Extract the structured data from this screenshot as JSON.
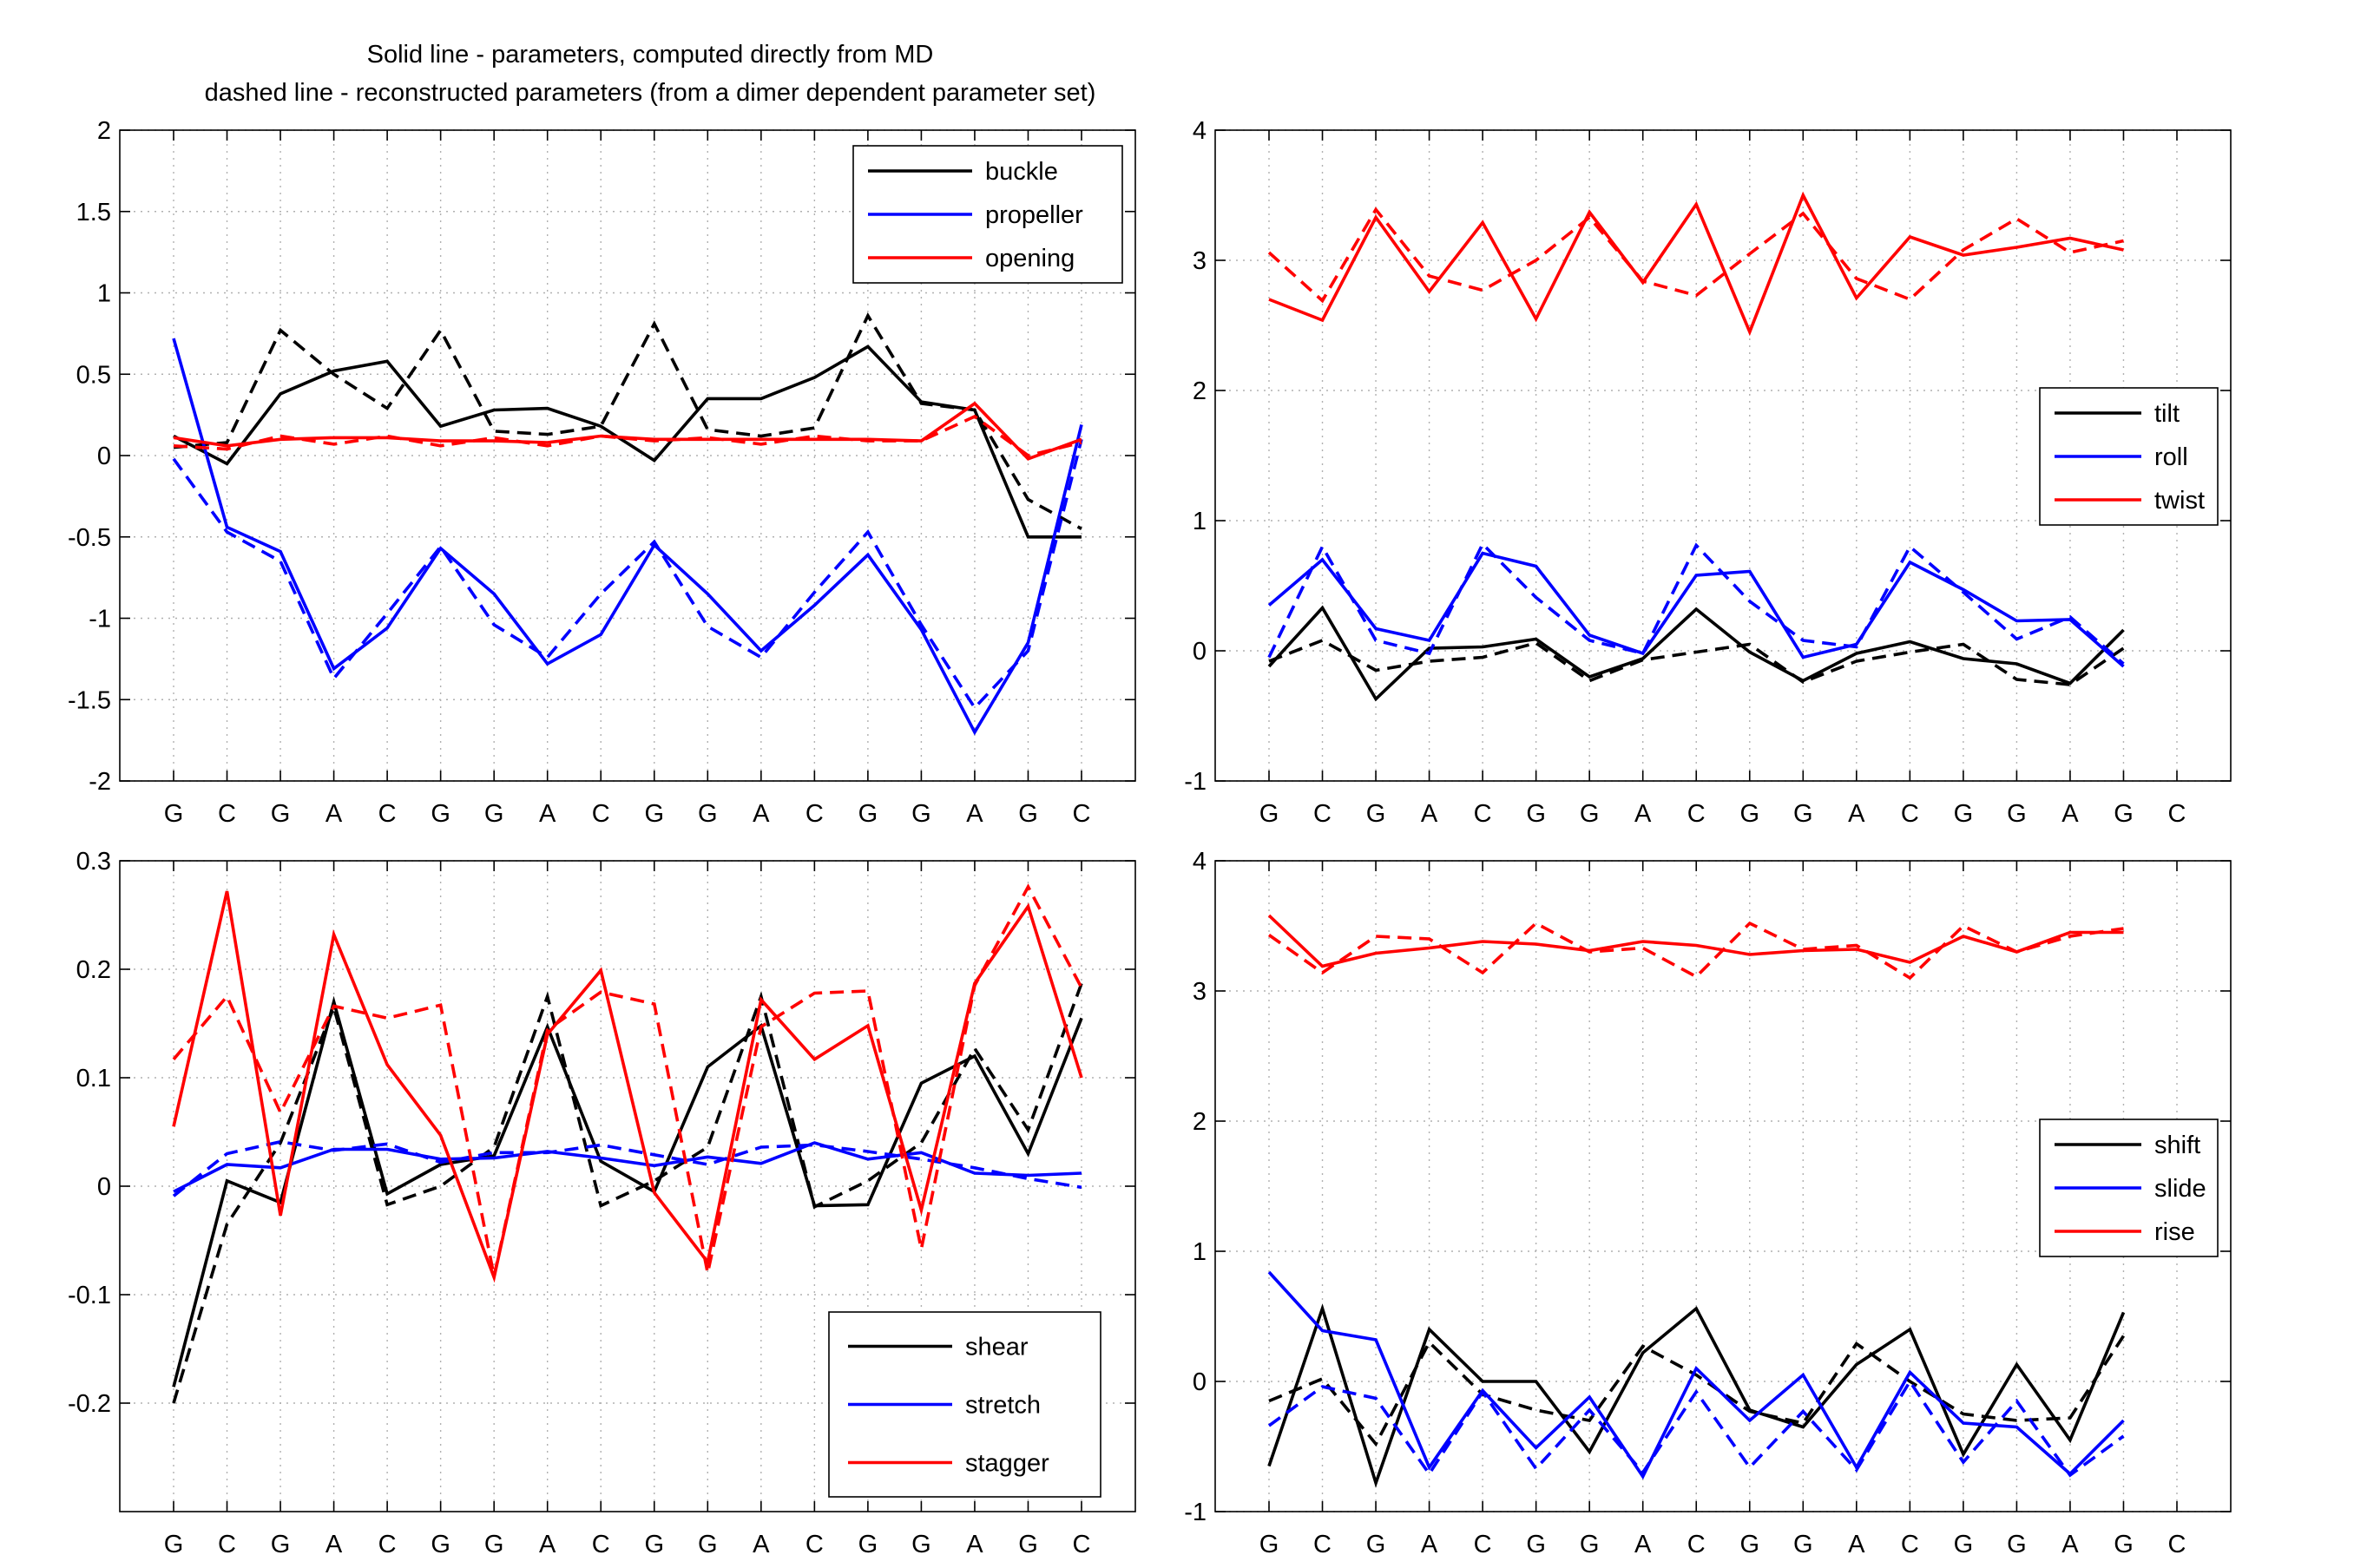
{
  "figure_title": {
    "line1": "Solid line - parameters, computed directly from MD",
    "line2": "dashed line - reconstructed parameters (from a dimer dependent parameter set)"
  },
  "line_styles": {
    "solid": "parameters, computed directly from MD",
    "dashed": "reconstructed parameters"
  },
  "colors": {
    "black": "#000000",
    "blue": "#0000ff",
    "red": "#ff0000",
    "grid": "#b0b0b0"
  },
  "chart_data": [
    {
      "id": "panel-top-left",
      "type": "line",
      "categories": [
        "G",
        "C",
        "G",
        "A",
        "C",
        "G",
        "G",
        "A",
        "C",
        "G",
        "G",
        "A",
        "C",
        "G",
        "G",
        "A",
        "G",
        "C"
      ],
      "ylim": [
        -2,
        2
      ],
      "yticks": [
        -2,
        -1.5,
        -1,
        -0.5,
        0,
        0.5,
        1,
        1.5,
        2
      ],
      "ytick_labels": [
        "-2",
        "-1.5",
        "-1",
        "-0.5",
        "0",
        "0.5",
        "1",
        "1.5",
        "2"
      ],
      "grid": true,
      "legend_position": "top-right",
      "series": [
        {
          "name": "buckle",
          "color": "#000000",
          "solid": [
            0.12,
            -0.05,
            0.38,
            0.52,
            0.58,
            0.18,
            0.28,
            0.29,
            0.18,
            -0.03,
            0.35,
            0.35,
            0.48,
            0.67,
            0.33,
            0.28,
            -0.5,
            -0.5
          ],
          "dashed": [
            0.05,
            0.08,
            0.77,
            0.5,
            0.29,
            0.77,
            0.15,
            0.13,
            0.18,
            0.81,
            0.16,
            0.12,
            0.17,
            0.86,
            0.32,
            0.28,
            -0.27,
            -0.45
          ]
        },
        {
          "name": "propeller",
          "color": "#0000ff",
          "solid": [
            0.72,
            -0.44,
            -0.59,
            -1.31,
            -1.06,
            -0.57,
            -0.85,
            -1.28,
            -1.1,
            -0.55,
            -0.85,
            -1.2,
            -0.92,
            -0.61,
            -1.07,
            -1.7,
            -1.15,
            0.19
          ],
          "dashed": [
            -0.02,
            -0.47,
            -0.65,
            -1.37,
            -0.97,
            -0.56,
            -1.04,
            -1.24,
            -0.85,
            -0.53,
            -1.05,
            -1.24,
            -0.84,
            -0.47,
            -1.04,
            -1.55,
            -1.2,
            0.1
          ]
        },
        {
          "name": "opening",
          "color": "#ff0000",
          "solid": [
            0.11,
            0.06,
            0.1,
            0.11,
            0.11,
            0.09,
            0.09,
            0.08,
            0.12,
            0.1,
            0.1,
            0.1,
            0.1,
            0.1,
            0.09,
            0.32,
            -0.02,
            0.1
          ],
          "dashed": [
            0.06,
            0.04,
            0.12,
            0.07,
            0.12,
            0.06,
            0.11,
            0.06,
            0.12,
            0.09,
            0.11,
            0.07,
            0.12,
            0.09,
            0.09,
            0.24,
            0.0,
            0.08
          ]
        }
      ]
    },
    {
      "id": "panel-top-right",
      "type": "line",
      "categories": [
        "G",
        "C",
        "G",
        "A",
        "C",
        "G",
        "G",
        "A",
        "C",
        "G",
        "G",
        "A",
        "C",
        "G",
        "G",
        "A",
        "G",
        "C"
      ],
      "ylim": [
        -1,
        4
      ],
      "yticks": [
        -1,
        0,
        1,
        2,
        3,
        4
      ],
      "ytick_labels": [
        "-1",
        "0",
        "1",
        "2",
        "3",
        "4"
      ],
      "grid": true,
      "legend_position": "right",
      "series": [
        {
          "name": "tilt",
          "color": "#000000",
          "solid": [
            -0.12,
            0.33,
            -0.37,
            0.02,
            0.03,
            0.09,
            -0.2,
            -0.06,
            0.32,
            -0.01,
            -0.23,
            -0.02,
            0.07,
            -0.06,
            -0.1,
            -0.25,
            0.16
          ],
          "dashed": [
            -0.08,
            0.08,
            -0.15,
            -0.08,
            -0.05,
            0.06,
            -0.23,
            -0.07,
            -0.01,
            0.05,
            -0.24,
            -0.08,
            -0.01,
            0.05,
            -0.22,
            -0.26,
            0.02
          ]
        },
        {
          "name": "roll",
          "color": "#0000ff",
          "solid": [
            0.35,
            0.7,
            0.17,
            0.08,
            0.75,
            0.65,
            0.12,
            -0.02,
            0.58,
            0.61,
            -0.05,
            0.05,
            0.68,
            0.47,
            0.23,
            0.24,
            -0.12
          ],
          "dashed": [
            -0.05,
            0.8,
            0.08,
            -0.02,
            0.82,
            0.41,
            0.08,
            -0.02,
            0.81,
            0.38,
            0.08,
            0.03,
            0.8,
            0.45,
            0.09,
            0.26,
            -0.1
          ]
        },
        {
          "name": "twist",
          "color": "#ff0000",
          "solid": [
            2.7,
            2.54,
            3.33,
            2.76,
            3.29,
            2.55,
            3.37,
            2.83,
            3.43,
            2.45,
            3.5,
            2.71,
            3.18,
            3.04,
            3.1,
            3.17,
            3.08
          ],
          "dashed": [
            3.06,
            2.69,
            3.39,
            2.88,
            2.77,
            3.0,
            3.33,
            2.84,
            2.73,
            3.05,
            3.36,
            2.86,
            2.7,
            3.08,
            3.32,
            3.06,
            3.15
          ]
        }
      ]
    },
    {
      "id": "panel-bottom-left",
      "type": "line",
      "categories": [
        "G",
        "C",
        "G",
        "A",
        "C",
        "G",
        "G",
        "A",
        "C",
        "G",
        "G",
        "A",
        "C",
        "G",
        "G",
        "A",
        "G",
        "C"
      ],
      "ylim": [
        -0.3,
        0.3
      ],
      "yticks": [
        -0.2,
        -0.1,
        0,
        0.1,
        0.2,
        0.3
      ],
      "ytick_labels": [
        "-0.2",
        "-0.1",
        "0",
        "0.1",
        "0.2",
        "0.3"
      ],
      "grid": true,
      "legend_position": "bottom-right",
      "series": [
        {
          "name": "shear",
          "color": "#000000",
          "solid": [
            -0.185,
            0.005,
            -0.015,
            0.17,
            -0.007,
            0.02,
            0.028,
            0.147,
            0.023,
            -0.005,
            0.11,
            0.148,
            -0.018,
            -0.017,
            0.095,
            0.12,
            0.03,
            0.155
          ],
          "dashed": [
            -0.2,
            -0.035,
            0.04,
            0.165,
            -0.017,
            0.0,
            0.036,
            0.175,
            -0.018,
            0.005,
            0.036,
            0.175,
            -0.019,
            0.005,
            0.04,
            0.127,
            0.052,
            0.187
          ]
        },
        {
          "name": "stretch",
          "color": "#0000ff",
          "solid": [
            -0.005,
            0.02,
            0.017,
            0.034,
            0.034,
            0.025,
            0.026,
            0.032,
            0.026,
            0.019,
            0.027,
            0.021,
            0.04,
            0.025,
            0.031,
            0.012,
            0.01,
            0.012
          ],
          "dashed": [
            -0.009,
            0.03,
            0.041,
            0.033,
            0.039,
            0.022,
            0.031,
            0.031,
            0.038,
            0.029,
            0.02,
            0.036,
            0.038,
            0.032,
            0.025,
            0.017,
            0.007,
            -0.001
          ]
        },
        {
          "name": "stagger",
          "color": "#ff0000",
          "solid": [
            0.055,
            0.272,
            -0.027,
            0.232,
            0.112,
            0.047,
            -0.084,
            0.14,
            0.199,
            -0.006,
            -0.07,
            0.172,
            0.117,
            0.148,
            -0.022,
            0.187,
            0.258,
            0.1
          ],
          "dashed": [
            0.117,
            0.175,
            0.068,
            0.166,
            0.155,
            0.167,
            -0.083,
            0.144,
            0.179,
            0.168,
            -0.08,
            0.147,
            0.178,
            0.18,
            -0.058,
            0.185,
            0.276,
            0.183
          ]
        }
      ]
    },
    {
      "id": "panel-bottom-right",
      "type": "line",
      "categories": [
        "G",
        "C",
        "G",
        "A",
        "C",
        "G",
        "G",
        "A",
        "C",
        "G",
        "G",
        "A",
        "C",
        "G",
        "G",
        "A",
        "G",
        "C"
      ],
      "ylim": [
        -1,
        4
      ],
      "yticks": [
        -1,
        0,
        1,
        2,
        3,
        4
      ],
      "ytick_labels": [
        "-1",
        "0",
        "1",
        "2",
        "3",
        "4"
      ],
      "grid": true,
      "legend_position": "right",
      "series": [
        {
          "name": "shift",
          "color": "#000000",
          "solid": [
            -0.65,
            0.56,
            -0.78,
            0.4,
            0.0,
            0.0,
            -0.54,
            0.22,
            0.56,
            -0.22,
            -0.35,
            0.13,
            0.4,
            -0.56,
            0.13,
            -0.45,
            0.53
          ],
          "dashed": [
            -0.15,
            0.02,
            -0.48,
            0.3,
            -0.1,
            -0.22,
            -0.3,
            0.27,
            0.05,
            -0.23,
            -0.32,
            0.29,
            0.0,
            -0.25,
            -0.3,
            -0.28,
            0.35
          ]
        },
        {
          "name": "slide",
          "color": "#0000ff",
          "solid": [
            0.84,
            0.39,
            0.32,
            -0.66,
            -0.07,
            -0.51,
            -0.12,
            -0.73,
            0.1,
            -0.3,
            0.05,
            -0.66,
            0.07,
            -0.32,
            -0.35,
            -0.71,
            -0.3
          ],
          "dashed": [
            -0.34,
            -0.04,
            -0.13,
            -0.71,
            -0.08,
            -0.67,
            -0.22,
            -0.7,
            -0.08,
            -0.66,
            -0.23,
            -0.68,
            0.0,
            -0.62,
            -0.15,
            -0.72,
            -0.42
          ]
        },
        {
          "name": "rise",
          "color": "#ff0000",
          "solid": [
            3.58,
            3.19,
            3.29,
            3.33,
            3.38,
            3.36,
            3.31,
            3.38,
            3.35,
            3.28,
            3.31,
            3.32,
            3.22,
            3.42,
            3.3,
            3.45,
            3.45
          ],
          "dashed": [
            3.43,
            3.14,
            3.42,
            3.4,
            3.14,
            3.52,
            3.3,
            3.33,
            3.11,
            3.52,
            3.32,
            3.35,
            3.1,
            3.5,
            3.3,
            3.42,
            3.48
          ]
        }
      ]
    }
  ]
}
